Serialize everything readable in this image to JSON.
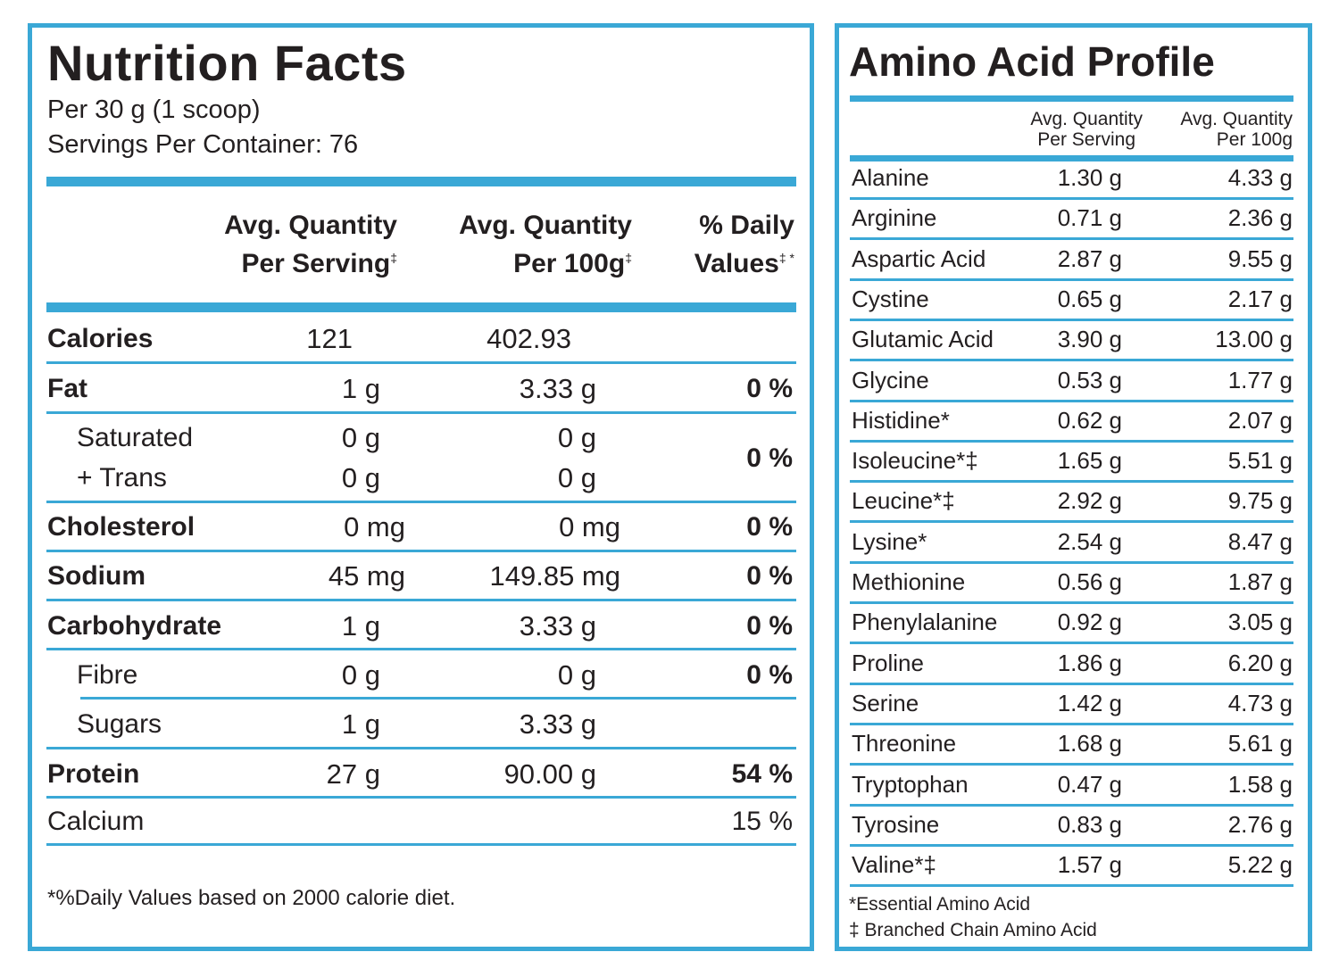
{
  "colors": {
    "accent": "#3aa8d6",
    "text": "#231f20"
  },
  "nutrition": {
    "title": "Nutrition Facts",
    "serving_size": "Per 30 g (1 scoop)",
    "servings_per_container": "Servings Per Container: 76",
    "headers": {
      "per_serving_l1": "Avg. Quantity",
      "per_serving_l2": "Per Serving",
      "per_serving_mark": "‡",
      "per_100g_l1": "Avg. Quantity",
      "per_100g_l2": "Per 100g",
      "per_100g_mark": "‡",
      "dv_l1": "% Daily",
      "dv_l2": "Values",
      "dv_mark": "‡ *"
    },
    "rows": [
      {
        "label": "Calories",
        "serving": "121",
        "per100": "402.93",
        "dv": ""
      },
      {
        "label": "Fat",
        "serving": "1 g",
        "per100": "3.33 g",
        "dv": "0 %"
      },
      {
        "label": "Saturated",
        "serving": "0 g",
        "per100": "0 g",
        "dv": "0 %"
      },
      {
        "label": "+ Trans",
        "serving": "0 g",
        "per100": "0 g",
        "dv": ""
      },
      {
        "label": "Cholesterol",
        "serving": "0 mg",
        "per100": "0 mg",
        "dv": "0 %"
      },
      {
        "label": "Sodium",
        "serving": "45 mg",
        "per100": "149.85 mg",
        "dv": "0 %"
      },
      {
        "label": "Carbohydrate",
        "serving": "1 g",
        "per100": "3.33 g",
        "dv": "0 %"
      },
      {
        "label": "Fibre",
        "serving": "0 g",
        "per100": "0 g",
        "dv": "0 %"
      },
      {
        "label": "Sugars",
        "serving": "1 g",
        "per100": "3.33 g",
        "dv": ""
      },
      {
        "label": "Protein",
        "serving": "27 g",
        "per100": "90.00 g",
        "dv": "54 %"
      },
      {
        "label": "Calcium",
        "serving": "",
        "per100": "",
        "dv": "15 %"
      }
    ],
    "footnote": "*%Daily Values based on 2000 calorie diet."
  },
  "amino": {
    "title": "Amino Acid Profile",
    "headers": {
      "serving_l1": "Avg. Quantity",
      "serving_l2": "Per Serving",
      "per100_l1": "Avg. Quantity",
      "per100_l2": "Per 100g"
    },
    "rows": [
      {
        "name": "Alanine",
        "serving": "1.30 g",
        "per100": "4.33 g"
      },
      {
        "name": "Arginine",
        "serving": "0.71 g",
        "per100": "2.36 g"
      },
      {
        "name": "Aspartic Acid",
        "serving": "2.87 g",
        "per100": "9.55 g"
      },
      {
        "name": "Cystine",
        "serving": "0.65 g",
        "per100": "2.17 g"
      },
      {
        "name": "Glutamic Acid",
        "serving": "3.90 g",
        "per100": "13.00 g"
      },
      {
        "name": "Glycine",
        "serving": "0.53 g",
        "per100": "1.77 g"
      },
      {
        "name": "Histidine*",
        "serving": "0.62 g",
        "per100": "2.07 g"
      },
      {
        "name": "Isoleucine*‡",
        "serving": "1.65 g",
        "per100": "5.51 g"
      },
      {
        "name": "Leucine*‡",
        "serving": "2.92 g",
        "per100": "9.75 g"
      },
      {
        "name": "Lysine*",
        "serving": "2.54 g",
        "per100": "8.47 g"
      },
      {
        "name": "Methionine",
        "serving": "0.56 g",
        "per100": "1.87 g"
      },
      {
        "name": "Phenylalanine",
        "serving": "0.92 g",
        "per100": "3.05 g"
      },
      {
        "name": "Proline",
        "serving": "1.86 g",
        "per100": "6.20 g"
      },
      {
        "name": "Serine",
        "serving": "1.42 g",
        "per100": "4.73 g"
      },
      {
        "name": "Threonine",
        "serving": "1.68 g",
        "per100": "5.61 g"
      },
      {
        "name": "Tryptophan",
        "serving": "0.47 g",
        "per100": "1.58 g"
      },
      {
        "name": "Tyrosine",
        "serving": "0.83 g",
        "per100": "2.76 g"
      },
      {
        "name": "Valine*‡",
        "serving": "1.57 g",
        "per100": "5.22 g"
      }
    ],
    "footnote_1": "*Essential Amino Acid",
    "footnote_2": "‡ Branched Chain Amino Acid"
  }
}
